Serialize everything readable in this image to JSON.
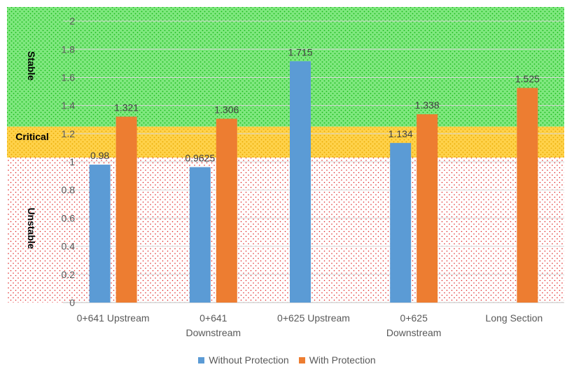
{
  "colors": {
    "without": "#5b9bd5",
    "with": "#ed7d31",
    "stable_zone": "#35d335",
    "critical_zone": "#ffc000",
    "unstable_zone": "#e02020",
    "grid": "#d9d9d9"
  },
  "zones": [
    {
      "name": "Stable",
      "from": 1.25,
      "to": 2.1
    },
    {
      "name": "Critical",
      "from": 1.03,
      "to": 1.25
    },
    {
      "name": "Unstable",
      "from": 0,
      "to": 1.03
    }
  ],
  "legend": {
    "items": [
      {
        "label": "Without Protection",
        "color": "#5b9bd5"
      },
      {
        "label": "With Protection",
        "color": "#ed7d31"
      }
    ],
    "placement": "bottom"
  },
  "chart_data": {
    "type": "bar",
    "title": "",
    "xlabel": "",
    "ylabel": "",
    "ylim": [
      0,
      2.1
    ],
    "yticks": [
      "0",
      "0.2",
      "0.4",
      "0.6",
      "0.8",
      "1",
      "1.2",
      "1.4",
      "1.6",
      "1.8",
      "2"
    ],
    "ytick_values": [
      0,
      0.2,
      0.4,
      0.6,
      0.8,
      1,
      1.2,
      1.4,
      1.6,
      1.8,
      2
    ],
    "grid": true,
    "categories": [
      [
        "0+641 Upstream"
      ],
      [
        "0+641",
        "Downstream"
      ],
      [
        "0+625 Upstream"
      ],
      [
        "0+625",
        "Downstream"
      ],
      [
        "Long Section"
      ]
    ],
    "series": [
      {
        "name": "Without Protection",
        "color": "#5b9bd5",
        "values": [
          0.98,
          0.9625,
          1.715,
          1.134,
          null
        ],
        "labels": [
          "0.98",
          "0.9625",
          "1.715",
          "1.134",
          null
        ]
      },
      {
        "name": "With Protection",
        "color": "#ed7d31",
        "values": [
          1.321,
          1.306,
          null,
          1.338,
          1.525
        ],
        "labels": [
          "1.321",
          "1.306",
          null,
          "1.338",
          "1.525"
        ]
      }
    ]
  }
}
